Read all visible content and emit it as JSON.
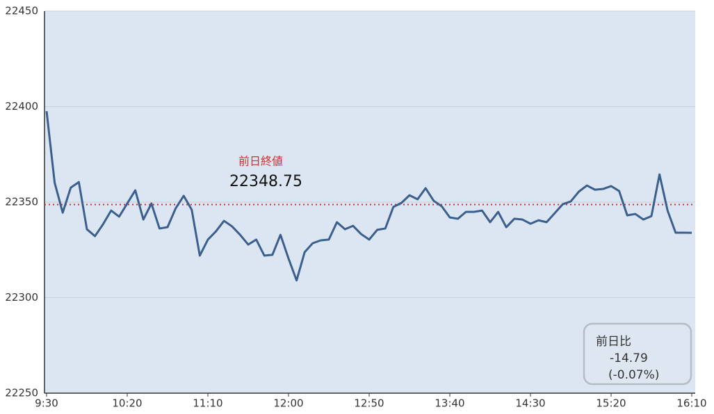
{
  "chart_data": {
    "type": "line",
    "categories": [
      "9:30",
      null,
      null,
      null,
      null,
      null,
      null,
      null,
      null,
      null,
      "10:20",
      null,
      null,
      null,
      null,
      null,
      null,
      null,
      null,
      null,
      "11:10",
      null,
      null,
      null,
      null,
      null,
      null,
      null,
      null,
      null,
      "12:00",
      null,
      null,
      null,
      null,
      null,
      null,
      null,
      null,
      null,
      "12:50",
      null,
      null,
      null,
      null,
      null,
      null,
      null,
      null,
      null,
      "13:40",
      null,
      null,
      null,
      null,
      null,
      null,
      null,
      null,
      null,
      "14:30",
      null,
      null,
      null,
      null,
      null,
      null,
      null,
      null,
      null,
      "15:20",
      null,
      null,
      null,
      null,
      null,
      null,
      null,
      null,
      null,
      "16:10"
    ],
    "series": [
      {
        "color": "#3a5f8f",
        "values": [
          22397.6,
          22360.2,
          22344.5,
          22357.6,
          22360.5,
          22335.8,
          22332.2,
          22338.4,
          22345.6,
          22342.4,
          22349.3,
          22356.2,
          22340.9,
          22349.3,
          22336.2,
          22336.9,
          22346.7,
          22353.3,
          22346.0,
          22322.0,
          22330.4,
          22334.7,
          22340.2,
          22337.3,
          22332.9,
          22327.8,
          22330.4,
          22322.0,
          22322.4,
          22332.9,
          22320.5,
          22309.0,
          22323.8,
          22328.5,
          22330.0,
          22330.4,
          22339.5,
          22335.8,
          22337.6,
          22333.3,
          22330.4,
          22335.5,
          22336.2,
          22347.5,
          22349.6,
          22353.6,
          22351.5,
          22357.3,
          22350.7,
          22347.8,
          22342.0,
          22341.3,
          22344.9,
          22344.9,
          22345.6,
          22339.5,
          22344.9,
          22336.9,
          22341.3,
          22340.9,
          22338.7,
          22340.5,
          22339.5,
          22344.2,
          22348.9,
          22350.4,
          22355.5,
          22358.7,
          22356.5,
          22356.9,
          22358.4,
          22355.8,
          22343.1,
          22343.8,
          22340.9,
          22342.7,
          22364.5,
          22345.6,
          22334.0,
          22334.0,
          22333.96
        ]
      }
    ],
    "ylim": [
      22250,
      22450
    ],
    "yticks": [
      22250,
      22300,
      22350,
      22400,
      22450
    ],
    "grid": true,
    "reference_line": {
      "label": "前日終値",
      "value": 22348.75,
      "color": "#d32f2f"
    },
    "change_box": {
      "label": "前日比",
      "value": -14.79,
      "percent": {
        "value": -0.07,
        "label": "(-0.07%)"
      }
    }
  }
}
